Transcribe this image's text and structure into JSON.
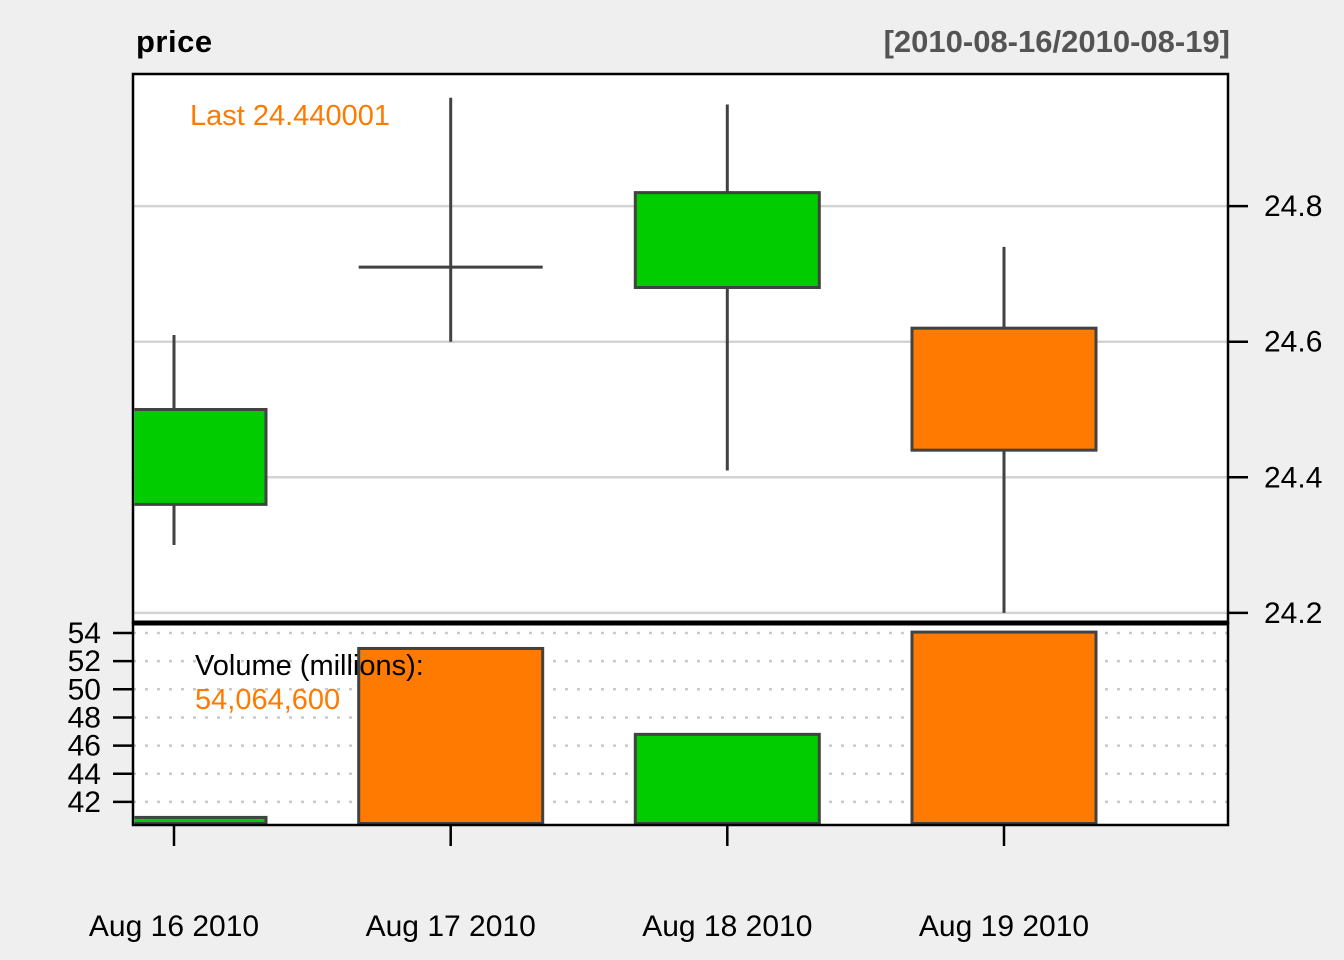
{
  "header": {
    "title": "price",
    "range": "[2010-08-16/2010-08-19]"
  },
  "annotations": {
    "last_label": "Last 24.440001",
    "volume_label": "Volume (millions):",
    "volume_value": "54,064,600"
  },
  "chart_data": {
    "type": "candlestick",
    "title": "price",
    "subtitle": "[2010-08-16/2010-08-19]",
    "x_labels": [
      "Aug 16 2010",
      "Aug 17 2010",
      "Aug 18 2010",
      "Aug 19 2010"
    ],
    "ohlc": [
      {
        "date": "Aug 16 2010",
        "open": 24.36,
        "high": 24.61,
        "low": 24.3,
        "close": 24.5,
        "direction": "up"
      },
      {
        "date": "Aug 17 2010",
        "open": 24.71,
        "high": 24.96,
        "low": 24.6,
        "close": 24.71,
        "direction": "flat"
      },
      {
        "date": "Aug 18 2010",
        "open": 24.68,
        "high": 24.95,
        "low": 24.41,
        "close": 24.82,
        "direction": "up"
      },
      {
        "date": "Aug 19 2010",
        "open": 24.62,
        "high": 24.74,
        "low": 24.2,
        "close": 24.44,
        "direction": "down"
      }
    ],
    "last_price": 24.440001,
    "volume_millions": [
      40.9,
      52.9,
      46.8,
      54.0646
    ],
    "price_axis": {
      "side": "right",
      "ticks": [
        24.8,
        24.6,
        24.4,
        24.2
      ],
      "range": [
        24.185,
        24.995
      ],
      "grid": "solid"
    },
    "volume_axis": {
      "side": "left",
      "ticks": [
        54,
        52,
        50,
        48,
        46,
        44,
        42
      ],
      "range": [
        40.36,
        54.71
      ],
      "grid": "dashed"
    },
    "legend_position": "none"
  },
  "colors": {
    "up": "#00CC00",
    "down": "#FF7A00",
    "outline": "#424242",
    "grid_main": "#D4D4D4",
    "grid_volume": "#C9C9C9",
    "panel_bg": "#FFFFFF",
    "page_bg": "#EFEFEF",
    "frame": "#000000",
    "accent_orange": "#FF7A00",
    "header_range": "#545454",
    "text": "#000000"
  }
}
